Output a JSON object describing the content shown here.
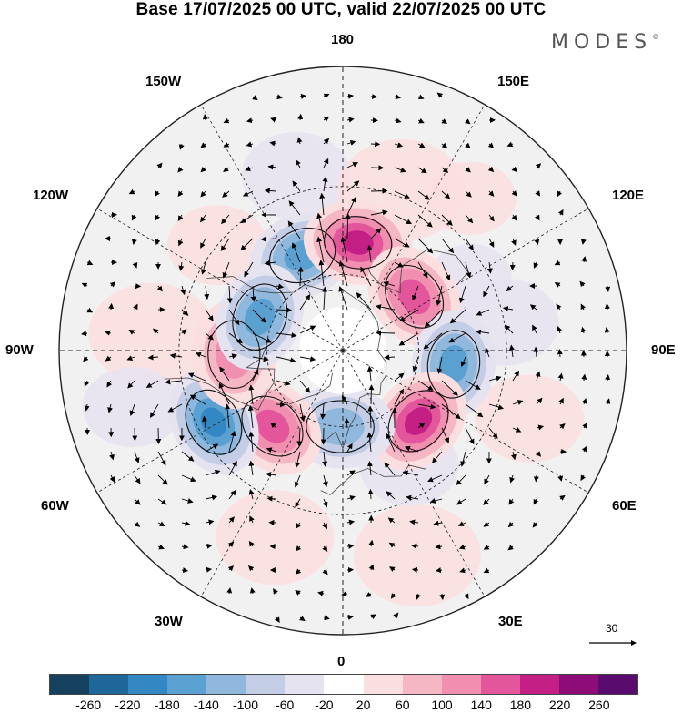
{
  "title": "Base 17/07/2025 00 UTC, valid 22/07/2025 00 UTC",
  "logo_text": "MODES",
  "logo_mark": "©",
  "longitude_labels": {
    "top": "180",
    "bottom": "0",
    "left": "90W",
    "right": "90E",
    "upper_left_1": "150W",
    "upper_left_2": "120W",
    "upper_right_1": "150E",
    "upper_right_2": "120E",
    "lower_left_1": "60W",
    "lower_left_2": "30W",
    "lower_right_1": "60E",
    "lower_right_2": "30E"
  },
  "reference_vector": {
    "value": "30",
    "icon": "arrow-right-icon"
  },
  "colorbar": {
    "colors": [
      "#15415f",
      "#1f6699",
      "#3387c2",
      "#5aa1d2",
      "#90b8dc",
      "#c3cde6",
      "#e6e3f1",
      "#ffffff",
      "#fbdedf",
      "#f6b7c4",
      "#f08fb0",
      "#e4569b",
      "#c31f84",
      "#8e0c78",
      "#5a0b6e"
    ],
    "labels": [
      "-260",
      "-220",
      "-180",
      "-140",
      "-100",
      "-60",
      "-20",
      "20",
      "60",
      "100",
      "140",
      "180",
      "220",
      "260"
    ]
  },
  "map": {
    "projection": "north-polar-stereographic",
    "field": "streamfunction/geopotential anomaly with wind vectors",
    "anomaly_centers": [
      {
        "sign": "negative",
        "lon": -157,
        "lat": 50,
        "value": -160
      },
      {
        "sign": "positive",
        "lon": 172,
        "lat": 48,
        "value": 190
      },
      {
        "sign": "positive",
        "lon": 127,
        "lat": 55,
        "value": 175
      },
      {
        "sign": "negative",
        "lon": 83,
        "lat": 47,
        "value": -150
      },
      {
        "sign": "positive",
        "lon": 47,
        "lat": 50,
        "value": 200
      },
      {
        "sign": "negative",
        "lon": -2,
        "lat": 60,
        "value": -130
      },
      {
        "sign": "positive",
        "lon": -43,
        "lat": 50,
        "value": 180
      },
      {
        "sign": "negative",
        "lon": -61,
        "lat": 35,
        "value": -210
      },
      {
        "sign": "positive",
        "lon": -88,
        "lat": 48,
        "value": 120
      },
      {
        "sign": "negative",
        "lon": -112,
        "lat": 55,
        "value": -150
      }
    ]
  }
}
